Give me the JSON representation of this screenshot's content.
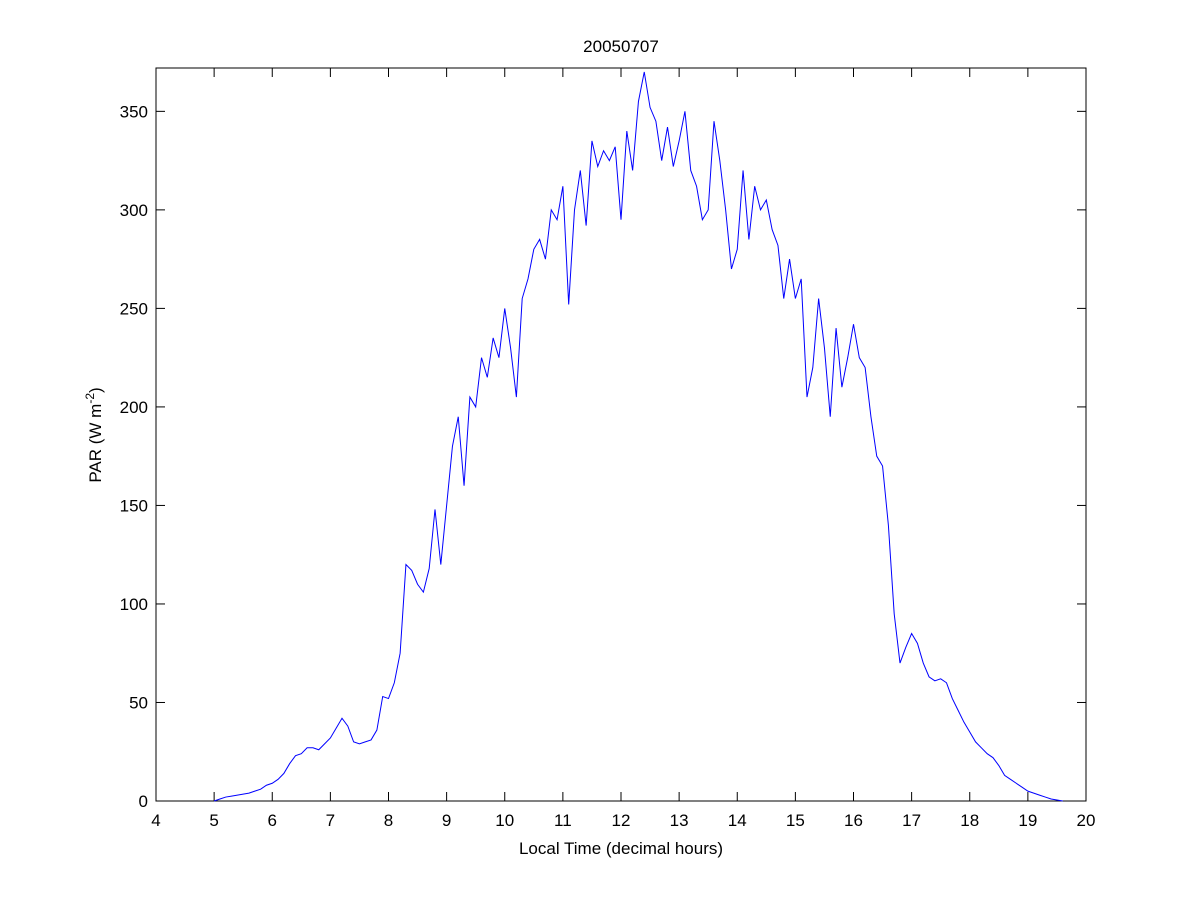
{
  "chart_data": {
    "type": "line",
    "title": "20050707",
    "xlabel": "Local Time (decimal hours)",
    "ylabel": {
      "text": "PAR (W m",
      "superscript": "-2",
      "suffix": ")"
    },
    "x": [
      5.0,
      5.1,
      5.2,
      5.3,
      5.4,
      5.5,
      5.6,
      5.7,
      5.8,
      5.9,
      6.0,
      6.1,
      6.2,
      6.3,
      6.4,
      6.5,
      6.6,
      6.7,
      6.8,
      6.9,
      7.0,
      7.1,
      7.2,
      7.3,
      7.4,
      7.5,
      7.6,
      7.7,
      7.8,
      7.9,
      8.0,
      8.1,
      8.2,
      8.3,
      8.4,
      8.5,
      8.6,
      8.7,
      8.8,
      8.9,
      9.0,
      9.1,
      9.2,
      9.3,
      9.4,
      9.5,
      9.6,
      9.7,
      9.8,
      9.9,
      10.0,
      10.1,
      10.2,
      10.3,
      10.4,
      10.5,
      10.6,
      10.7,
      10.8,
      10.9,
      11.0,
      11.1,
      11.2,
      11.3,
      11.4,
      11.5,
      11.6,
      11.7,
      11.8,
      11.9,
      12.0,
      12.1,
      12.2,
      12.3,
      12.4,
      12.5,
      12.6,
      12.7,
      12.8,
      12.9,
      13.0,
      13.1,
      13.2,
      13.3,
      13.4,
      13.5,
      13.6,
      13.7,
      13.8,
      13.9,
      14.0,
      14.1,
      14.2,
      14.3,
      14.4,
      14.5,
      14.6,
      14.7,
      14.8,
      14.9,
      15.0,
      15.1,
      15.2,
      15.3,
      15.4,
      15.5,
      15.6,
      15.7,
      15.8,
      15.9,
      16.0,
      16.1,
      16.2,
      16.3,
      16.4,
      16.5,
      16.6,
      16.7,
      16.8,
      16.9,
      17.0,
      17.1,
      17.2,
      17.3,
      17.4,
      17.5,
      17.6,
      17.7,
      17.8,
      17.9,
      18.0,
      18.1,
      18.2,
      18.3,
      18.4,
      18.5,
      18.6,
      18.7,
      18.8,
      18.9,
      19.0,
      19.1,
      19.2,
      19.3,
      19.4,
      19.5,
      19.6
    ],
    "values": [
      0,
      1,
      2,
      2.5,
      3,
      3.5,
      4,
      5,
      6,
      8,
      9,
      11,
      14,
      19,
      23,
      24,
      27,
      27,
      26,
      29,
      32,
      37,
      42,
      38,
      30,
      29,
      30,
      31,
      36,
      53,
      52,
      60,
      75,
      120,
      117,
      110,
      106,
      118,
      148,
      120,
      150,
      180,
      195,
      160,
      205,
      200,
      225,
      215,
      235,
      225,
      250,
      230,
      205,
      255,
      265,
      280,
      285,
      275,
      300,
      295,
      312,
      252,
      300,
      320,
      292,
      335,
      322,
      330,
      325,
      332,
      295,
      340,
      320,
      355,
      370,
      352,
      345,
      325,
      342,
      322,
      335,
      350,
      320,
      312,
      295,
      300,
      345,
      325,
      300,
      270,
      280,
      320,
      285,
      312,
      300,
      305,
      290,
      282,
      255,
      275,
      255,
      265,
      205,
      220,
      255,
      230,
      195,
      240,
      210,
      225,
      242,
      225,
      220,
      195,
      175,
      170,
      140,
      95,
      70,
      78,
      85,
      80,
      70,
      63,
      61,
      62,
      60,
      52,
      46,
      40,
      35,
      30,
      27,
      24,
      22,
      18,
      13,
      11,
      9,
      7,
      5,
      4,
      3,
      2,
      1,
      0.5,
      0
    ],
    "color": "#0000ff",
    "xlim": [
      4,
      20
    ],
    "xticks": [
      4,
      5,
      6,
      7,
      8,
      9,
      10,
      11,
      12,
      13,
      14,
      15,
      16,
      17,
      18,
      19,
      20
    ],
    "ylim": [
      0,
      372
    ],
    "yticks": [
      0,
      50,
      100,
      150,
      200,
      250,
      300,
      350
    ],
    "grid": false
  }
}
